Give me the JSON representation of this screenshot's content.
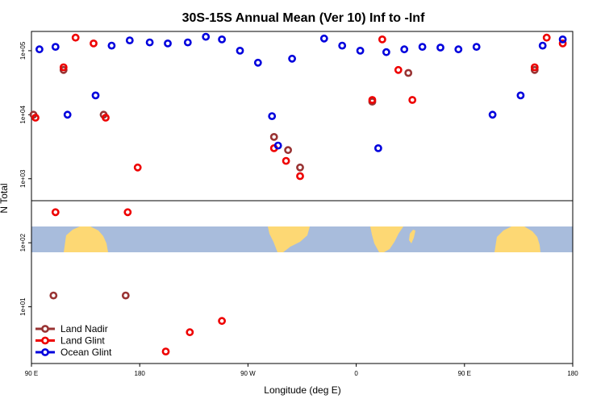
{
  "chart_data": {
    "type": "scatter",
    "title": "30S-15S Annual Mean (Ver 10)   Inf to -Inf",
    "xlabel": "Longitude (deg E)",
    "ylabel": "N Total",
    "y_scale": "log",
    "xlim": [
      -90,
      180
    ],
    "ylim": [
      1.3,
      200000
    ],
    "legend_position": "bottom-left",
    "x_ticks": [
      {
        "value": -90,
        "label": "90 E"
      },
      {
        "value": -36,
        "label": "180"
      },
      {
        "value": 18,
        "label": "90 W"
      },
      {
        "value": 72,
        "label": "0"
      },
      {
        "value": 126,
        "label": "90 E"
      },
      {
        "value": 180,
        "label": "180"
      }
    ],
    "y_ticks": [
      {
        "value": 10,
        "label": "1e+01"
      },
      {
        "value": 100,
        "label": "1e+02"
      },
      {
        "value": 1000,
        "label": "1e+03"
      },
      {
        "value": 10000,
        "label": "1e+04"
      },
      {
        "value": 100000,
        "label": "1e+05"
      }
    ],
    "colors": {
      "land_nadir": "#993333",
      "land_glint": "#ee0000",
      "ocean_glint": "#0000dd",
      "ocean_band": "#a8bcdc",
      "land_band": "#fdd874"
    },
    "series": [
      {
        "name": "Land Nadir",
        "color": "#993333",
        "points": [
          {
            "x": -74,
            "y": 50000
          },
          {
            "x": -54,
            "y": 10000
          },
          {
            "x": -43,
            "y": 15
          },
          {
            "x": 31,
            "y": 4500
          },
          {
            "x": 38,
            "y": 2800
          },
          {
            "x": 44,
            "y": 1500
          },
          {
            "x": 80,
            "y": 16000
          },
          {
            "x": 98,
            "y": 45000
          },
          {
            "x": 161,
            "y": 50000
          },
          {
            "x": 181,
            "y": 10000
          },
          {
            "x": 191,
            "y": 15
          }
        ]
      },
      {
        "name": "Land Glint",
        "color": "#ee0000",
        "points": [
          {
            "x": -74,
            "y": 55000
          },
          {
            "x": -68,
            "y": 160000
          },
          {
            "x": -59,
            "y": 130000
          },
          {
            "x": -53,
            "y": 9000
          },
          {
            "x": -42,
            "y": 300
          },
          {
            "x": -37,
            "y": 1500
          },
          {
            "x": -23,
            "y": 2
          },
          {
            "x": -11,
            "y": 4
          },
          {
            "x": 5,
            "y": 6
          },
          {
            "x": 31,
            "y": 3000
          },
          {
            "x": 37,
            "y": 1900
          },
          {
            "x": 44,
            "y": 1100
          },
          {
            "x": 80,
            "y": 17000
          },
          {
            "x": 85,
            "y": 150000
          },
          {
            "x": 93,
            "y": 50000
          },
          {
            "x": 100,
            "y": 17000
          },
          {
            "x": 161,
            "y": 55000
          },
          {
            "x": 167,
            "y": 160000
          },
          {
            "x": 175,
            "y": 130000
          },
          {
            "x": 182,
            "y": 9000
          },
          {
            "x": 192,
            "y": 300
          }
        ]
      },
      {
        "name": "Ocean Glint",
        "color": "#0000dd",
        "points": [
          {
            "x": -86,
            "y": 105000
          },
          {
            "x": -78,
            "y": 115000
          },
          {
            "x": -72,
            "y": 10000
          },
          {
            "x": -58,
            "y": 20000
          },
          {
            "x": -50,
            "y": 120000
          },
          {
            "x": -41,
            "y": 145000
          },
          {
            "x": -31,
            "y": 135000
          },
          {
            "x": -22,
            "y": 130000
          },
          {
            "x": -12,
            "y": 135000
          },
          {
            "x": -3,
            "y": 165000
          },
          {
            "x": 5,
            "y": 150000
          },
          {
            "x": 14,
            "y": 100000
          },
          {
            "x": 23,
            "y": 65000
          },
          {
            "x": 30,
            "y": 9500
          },
          {
            "x": 33,
            "y": 3300
          },
          {
            "x": 40,
            "y": 75000
          },
          {
            "x": 56,
            "y": 155000
          },
          {
            "x": 65,
            "y": 120000
          },
          {
            "x": 74,
            "y": 100000
          },
          {
            "x": 83,
            "y": 3000
          },
          {
            "x": 87,
            "y": 95000
          },
          {
            "x": 96,
            "y": 105000
          },
          {
            "x": 105,
            "y": 115000
          },
          {
            "x": 114,
            "y": 112000
          },
          {
            "x": 123,
            "y": 105000
          },
          {
            "x": 132,
            "y": 115000
          },
          {
            "x": 140,
            "y": 10000
          },
          {
            "x": 154,
            "y": 20000
          },
          {
            "x": 165,
            "y": 120000
          },
          {
            "x": 175,
            "y": 150000
          }
        ]
      }
    ]
  }
}
